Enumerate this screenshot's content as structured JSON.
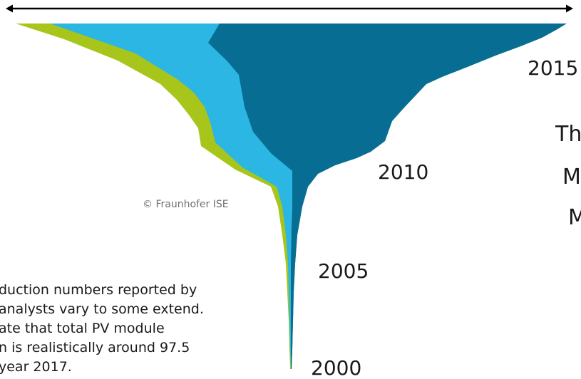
{
  "colors": {
    "background": "#ffffff",
    "text": "#1a1a1a",
    "copyright": "#707070",
    "green": "#a8c51b",
    "light_blue": "#2cb6e3",
    "dark_blue": "#076d93",
    "rule": "#000000"
  },
  "copyright": "© Fraunhofer ISE",
  "side_text": [
    "Th",
    "M",
    "M"
  ],
  "note_lines": [
    "duction numbers reported by",
    "analysts vary to some extend.",
    "ate that total PV module",
    "n is realistically around 97.5",
    "year 2017."
  ],
  "chart_data": {
    "type": "area",
    "orientation": "vertical",
    "layout": "centered-stream",
    "y_labels": [
      "2000",
      "2005",
      "2010",
      "2015"
    ],
    "series": [
      {
        "color": "#a8c51b"
      },
      {
        "color": "#2cb6e3"
      },
      {
        "color": "#076d93"
      }
    ]
  }
}
